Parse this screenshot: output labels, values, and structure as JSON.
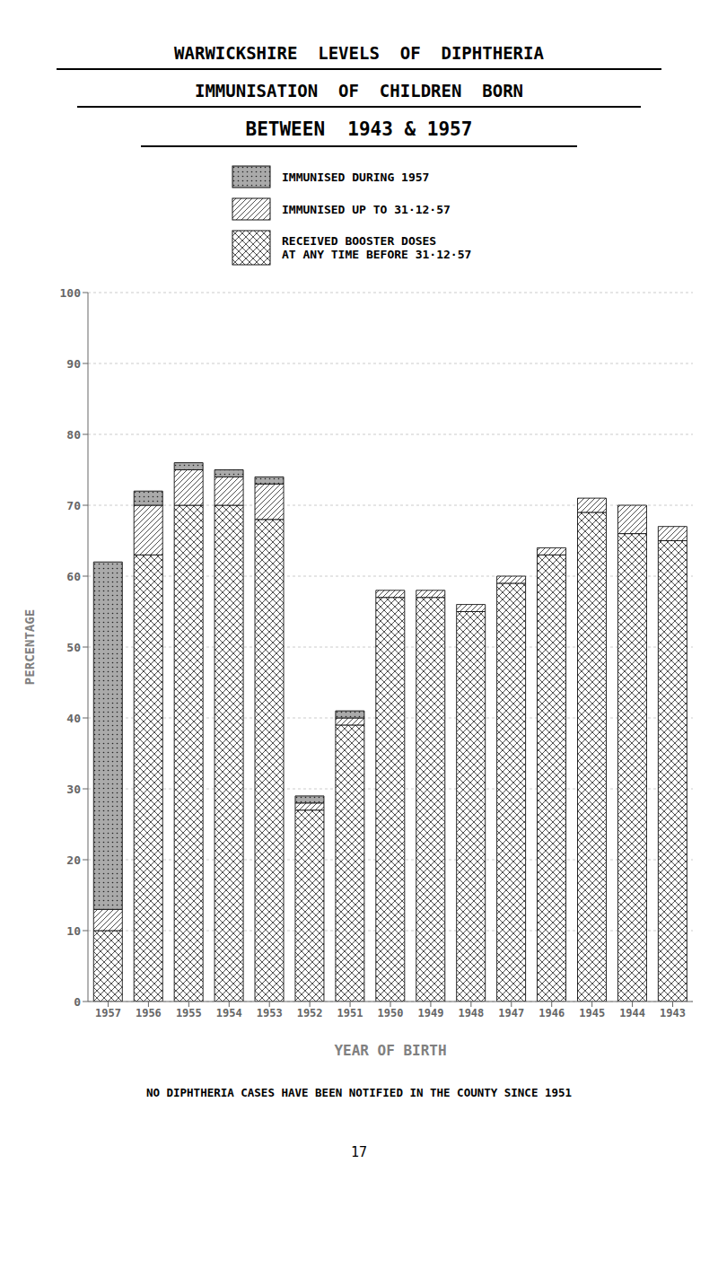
{
  "chart_data": {
    "type": "bar",
    "stacked": true,
    "title": "WARWICKSHIRE  LEVELS  OF  DIPHTHERIA\nIMMUNISATION  OF  CHILDREN  BORN\nBETWEEN  1943 & 1957",
    "x_label": "YEAR OF BIRTH",
    "y_label": "PERCENTAGE",
    "categories": [
      "1957",
      "1956",
      "1955",
      "1954",
      "1953",
      "1952",
      "1951",
      "1950",
      "1949",
      "1948",
      "1947",
      "1946",
      "1945",
      "1944",
      "1943"
    ],
    "series": [
      {
        "name": "RECEIVED BOOSTER DOSES\nAT ANY TIME BEFORE 31·12·57",
        "color": "#ffffff",
        "values": [
          10,
          63,
          70,
          70,
          68,
          27,
          39,
          57,
          57,
          55,
          59,
          63,
          69,
          66,
          65
        ]
      },
      {
        "name": "IMMUNISED UP TO 31·12·57",
        "color": "#ffffff",
        "values": [
          3,
          7,
          5,
          4,
          5,
          1,
          1,
          1,
          1,
          1,
          1,
          1,
          2,
          4,
          2
        ]
      },
      {
        "name": "IMMUNISED DURING 1957",
        "color": "#aaaaaa",
        "values": [
          49,
          2,
          1,
          1,
          1,
          1,
          1,
          0,
          0,
          0,
          0,
          0,
          0,
          0,
          0
        ]
      }
    ],
    "ylim": [
      0,
      100
    ],
    "yticks": [
      0,
      10,
      20,
      30,
      40,
      50,
      60,
      70,
      80,
      90,
      100
    ],
    "grid": true,
    "annotations": [
      "NO DIPHTHERIA CASES HAVE BEEN NOTIFIED IN THE COUNTY SINCE 1951",
      "17"
    ]
  }
}
